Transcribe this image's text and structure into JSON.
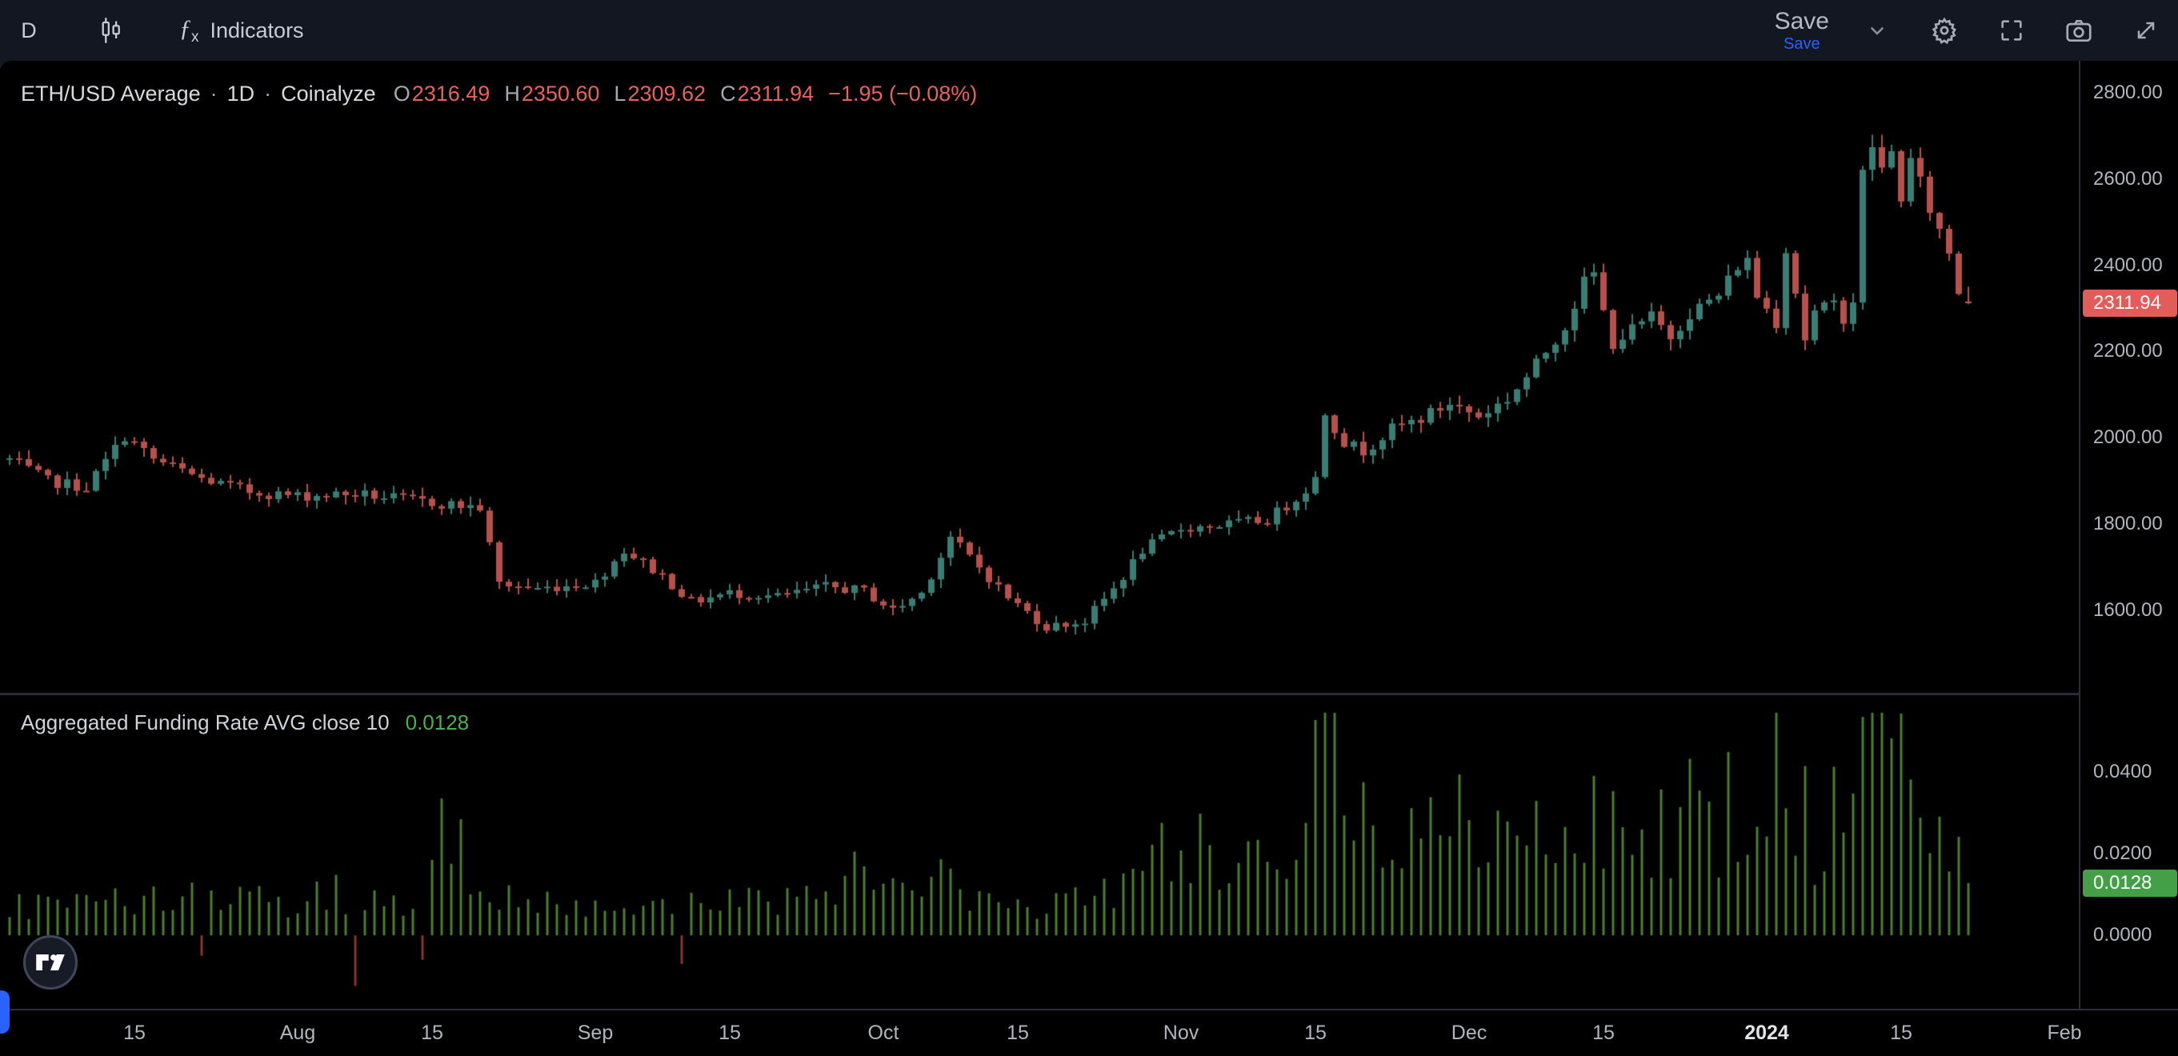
{
  "toolbar": {
    "timeframe": "D",
    "indicators_label": "Indicators",
    "fx_glyph": "ƒ",
    "fx_sub": "x",
    "save_label": "Save",
    "save_sub_label": "Save"
  },
  "legend": {
    "symbol": "ETH/USD Average",
    "separator": "·",
    "timeframe": "1D",
    "source": "Coinalyze",
    "o_label": "O",
    "o_value": "2316.49",
    "h_label": "H",
    "h_value": "2350.60",
    "l_label": "L",
    "l_value": "2309.62",
    "c_label": "C",
    "c_value": "2311.94",
    "change": "−1.95 (−0.08%)"
  },
  "funding_legend": {
    "title": "Aggregated Funding Rate AVG close 10",
    "value": "0.0128"
  },
  "price_axis": {
    "labels": [
      {
        "text": "2800.00",
        "value": 2800
      },
      {
        "text": "2600.00",
        "value": 2600
      },
      {
        "text": "2400.00",
        "value": 2400
      },
      {
        "text": "2200.00",
        "value": 2200
      },
      {
        "text": "2000.00",
        "value": 2000
      },
      {
        "text": "1800.00",
        "value": 1800
      },
      {
        "text": "1600.00",
        "value": 1600
      }
    ],
    "tag": {
      "text": "2311.94",
      "value": 2311.94,
      "color": "#e25d5a"
    }
  },
  "funding_axis": {
    "labels": [
      {
        "text": "0.0400",
        "value": 0.04
      },
      {
        "text": "0.0200",
        "value": 0.02
      },
      {
        "text": "0.0000",
        "value": 0.0
      }
    ],
    "tag": {
      "text": "0.0128",
      "value": 0.0128,
      "color": "#43a047"
    }
  },
  "time_axis": {
    "labels": [
      {
        "text": "15",
        "day": 13
      },
      {
        "text": "Aug",
        "day": 30
      },
      {
        "text": "15",
        "day": 44
      },
      {
        "text": "Sep",
        "day": 61
      },
      {
        "text": "15",
        "day": 75
      },
      {
        "text": "Oct",
        "day": 91
      },
      {
        "text": "15",
        "day": 105
      },
      {
        "text": "Nov",
        "day": 122
      },
      {
        "text": "15",
        "day": 136
      },
      {
        "text": "Dec",
        "day": 152
      },
      {
        "text": "15",
        "day": 166
      },
      {
        "text": "2024",
        "day": 183,
        "strong": true
      },
      {
        "text": "15",
        "day": 197
      },
      {
        "text": "Feb",
        "day": 214
      }
    ]
  },
  "colors": {
    "candle_up": "#3a7d73",
    "candle_down": "#b5504b",
    "funding_pos": "#4c7d2d",
    "funding_neg": "#8a3430",
    "accent_blue": "#2962ff",
    "value_red": "#e8615d",
    "value_green": "#4caf50"
  },
  "chart_data": {
    "type": "candlestick",
    "title": "ETH/USD Average · 1D · Coinalyze",
    "legend_ohlc": {
      "open": 2316.49,
      "high": 2350.6,
      "low": 2309.62,
      "close": 2311.94,
      "change": -1.95,
      "change_pct": -0.08
    },
    "x": {
      "days": 205,
      "start": "Jul 2023",
      "end": "Jan 2024",
      "x0": 12,
      "dx": 12
    },
    "seed": 7,
    "panes": [
      {
        "name": "price",
        "type": "candlestick",
        "ylabel": "ETH/USD",
        "ylim": [
          1409,
          2874
        ],
        "grid": false,
        "close_anchors": [
          [
            0,
            1950
          ],
          [
            4,
            1900
          ],
          [
            8,
            1885
          ],
          [
            12,
            2005
          ],
          [
            15,
            1950
          ],
          [
            20,
            1905
          ],
          [
            25,
            1875
          ],
          [
            30,
            1865
          ],
          [
            36,
            1870
          ],
          [
            44,
            1850
          ],
          [
            49,
            1838
          ],
          [
            51,
            1662
          ],
          [
            55,
            1650
          ],
          [
            61,
            1665
          ],
          [
            64,
            1740
          ],
          [
            68,
            1680
          ],
          [
            71,
            1620
          ],
          [
            75,
            1640
          ],
          [
            80,
            1632
          ],
          [
            85,
            1655
          ],
          [
            89,
            1645
          ],
          [
            92,
            1600
          ],
          [
            95,
            1640
          ],
          [
            98,
            1770
          ],
          [
            101,
            1700
          ],
          [
            104,
            1630
          ],
          [
            108,
            1562
          ],
          [
            112,
            1575
          ],
          [
            115,
            1650
          ],
          [
            118,
            1740
          ],
          [
            122,
            1790
          ],
          [
            127,
            1800
          ],
          [
            131,
            1810
          ],
          [
            134,
            1860
          ],
          [
            136,
            1905
          ],
          [
            137,
            2060
          ],
          [
            139,
            1990
          ],
          [
            141,
            1970
          ],
          [
            144,
            2020
          ],
          [
            147,
            2045
          ],
          [
            150,
            2080
          ],
          [
            153,
            2050
          ],
          [
            156,
            2090
          ],
          [
            158,
            2140
          ],
          [
            160,
            2200
          ],
          [
            162,
            2260
          ],
          [
            164,
            2360
          ],
          [
            165,
            2380
          ],
          [
            166,
            2290
          ],
          [
            167,
            2220
          ],
          [
            169,
            2250
          ],
          [
            171,
            2280
          ],
          [
            173,
            2235
          ],
          [
            175,
            2290
          ],
          [
            178,
            2330
          ],
          [
            180,
            2400
          ],
          [
            181,
            2410
          ],
          [
            182,
            2330
          ],
          [
            184,
            2270
          ],
          [
            185,
            2440
          ],
          [
            186,
            2340
          ],
          [
            187,
            2230
          ],
          [
            188,
            2290
          ],
          [
            190,
            2310
          ],
          [
            191,
            2280
          ],
          [
            192,
            2320
          ],
          [
            193,
            2610
          ],
          [
            194,
            2680
          ],
          [
            195,
            2620
          ],
          [
            196,
            2660
          ],
          [
            197,
            2560
          ],
          [
            198,
            2640
          ],
          [
            199,
            2590
          ],
          [
            200,
            2530
          ],
          [
            201,
            2480
          ],
          [
            202,
            2430
          ],
          [
            203,
            2340
          ],
          [
            204,
            2312
          ]
        ],
        "last_candle": {
          "o": 2316.49,
          "h": 2350.6,
          "l": 2309.62,
          "c": 2311.94
        }
      },
      {
        "name": "funding_rate",
        "type": "bar",
        "ylabel": "Aggregated Funding Rate AVG close 10",
        "ylim": [
          -0.018,
          0.0588
        ],
        "grid": false,
        "value_anchors": [
          [
            0,
            0.007
          ],
          [
            5,
            0.009
          ],
          [
            10,
            0.008
          ],
          [
            14,
            0.01
          ],
          [
            18,
            0.008
          ],
          [
            22,
            0.012
          ],
          [
            26,
            0.009
          ],
          [
            30,
            0.008
          ],
          [
            34,
            0.01
          ],
          [
            38,
            0.008
          ],
          [
            42,
            0.01
          ],
          [
            44,
            0.018
          ],
          [
            46,
            0.028
          ],
          [
            48,
            0.014
          ],
          [
            50,
            0.012
          ],
          [
            52,
            0.01
          ],
          [
            55,
            0.007
          ],
          [
            58,
            0.009
          ],
          [
            62,
            0.007
          ],
          [
            66,
            0.006
          ],
          [
            69,
            0.007
          ],
          [
            72,
            0.008
          ],
          [
            76,
            0.01
          ],
          [
            80,
            0.009
          ],
          [
            84,
            0.012
          ],
          [
            88,
            0.016
          ],
          [
            91,
            0.01
          ],
          [
            94,
            0.008
          ],
          [
            96,
            0.02
          ],
          [
            99,
            0.012
          ],
          [
            102,
            0.009
          ],
          [
            105,
            0.008
          ],
          [
            108,
            0.007
          ],
          [
            111,
            0.01
          ],
          [
            114,
            0.012
          ],
          [
            117,
            0.014
          ],
          [
            120,
            0.022
          ],
          [
            123,
            0.024
          ],
          [
            126,
            0.02
          ],
          [
            129,
            0.016
          ],
          [
            132,
            0.022
          ],
          [
            135,
            0.028
          ],
          [
            137,
            0.052
          ],
          [
            139,
            0.036
          ],
          [
            141,
            0.03
          ],
          [
            143,
            0.026
          ],
          [
            145,
            0.032
          ],
          [
            147,
            0.028
          ],
          [
            150,
            0.036
          ],
          [
            152,
            0.022
          ],
          [
            154,
            0.02
          ],
          [
            156,
            0.024
          ],
          [
            158,
            0.03
          ],
          [
            160,
            0.034
          ],
          [
            162,
            0.03
          ],
          [
            164,
            0.026
          ],
          [
            166,
            0.03
          ],
          [
            168,
            0.022
          ],
          [
            170,
            0.018
          ],
          [
            172,
            0.024
          ],
          [
            174,
            0.028
          ],
          [
            176,
            0.03
          ],
          [
            178,
            0.026
          ],
          [
            180,
            0.034
          ],
          [
            182,
            0.04
          ],
          [
            184,
            0.044
          ],
          [
            186,
            0.032
          ],
          [
            188,
            0.024
          ],
          [
            190,
            0.028
          ],
          [
            192,
            0.044
          ],
          [
            194,
            0.05
          ],
          [
            196,
            0.04
          ],
          [
            198,
            0.042
          ],
          [
            200,
            0.036
          ],
          [
            202,
            0.028
          ],
          [
            203,
            0.02
          ],
          [
            204,
            0.0128
          ]
        ],
        "negative_days": [
          [
            20,
            -0.005
          ],
          [
            36,
            -0.0124
          ],
          [
            43,
            -0.006
          ],
          [
            70,
            -0.007
          ]
        ],
        "last_value": 0.0128
      }
    ]
  }
}
